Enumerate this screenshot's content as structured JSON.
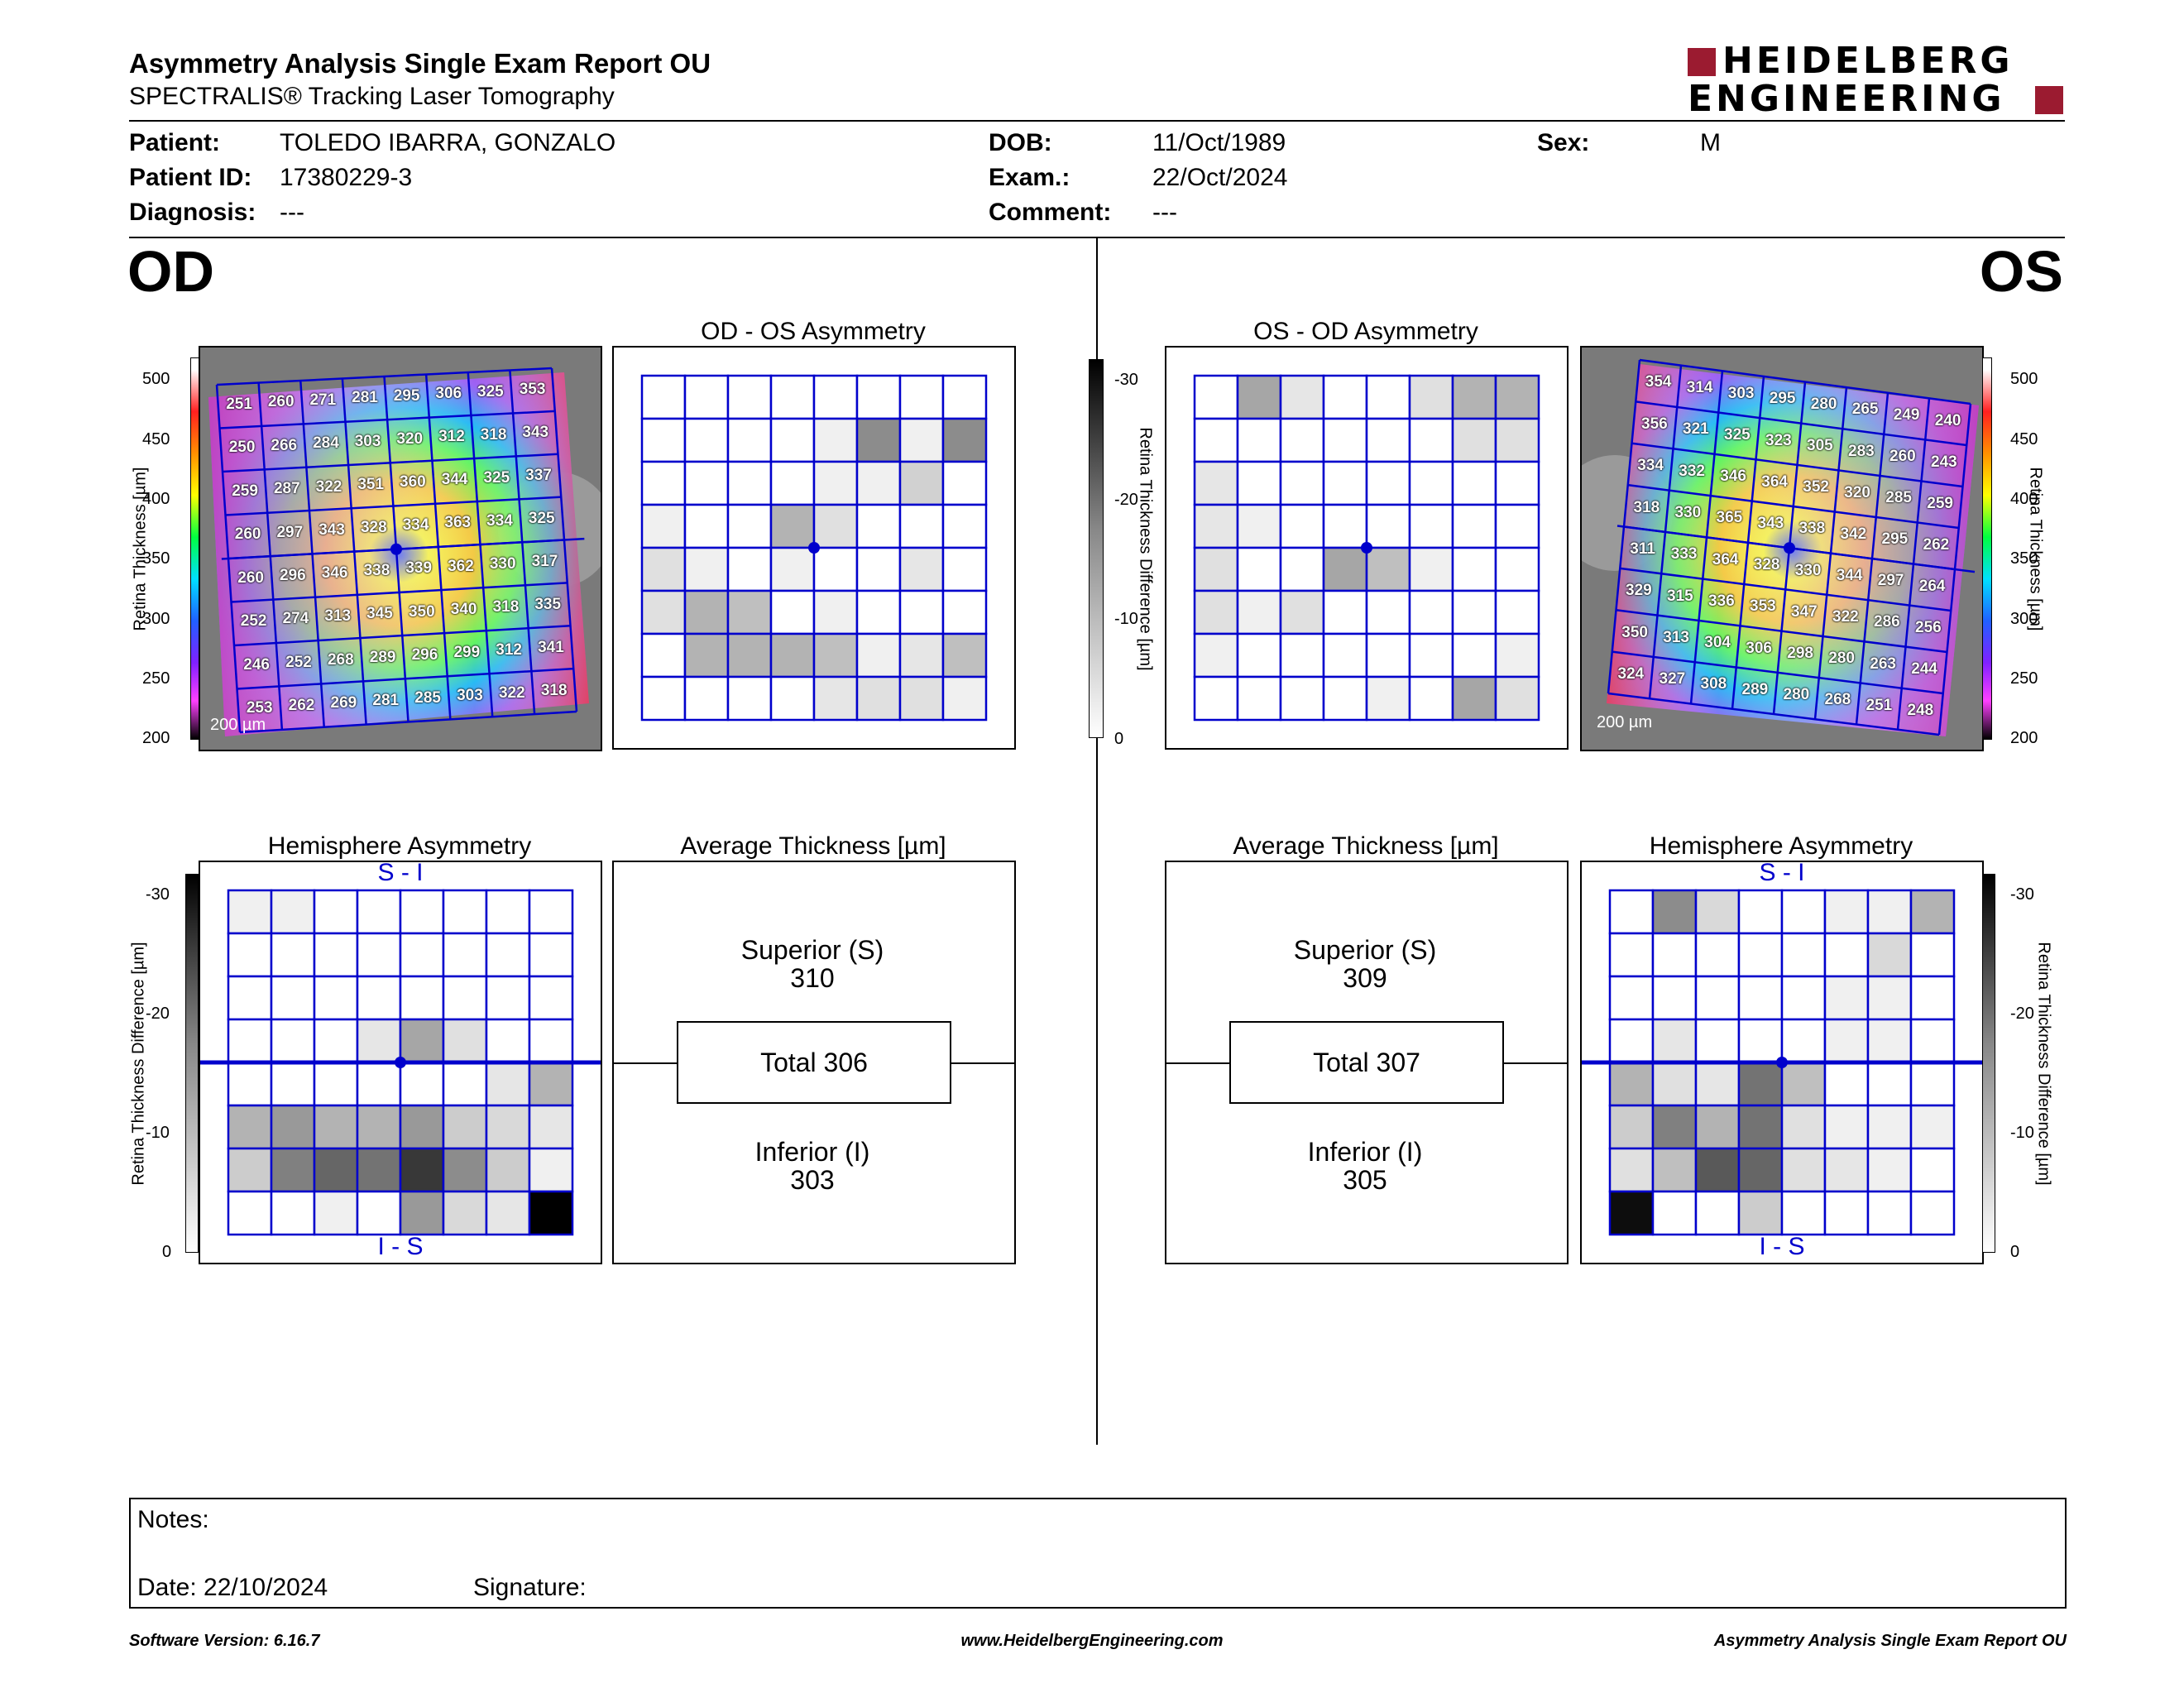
{
  "header": {
    "title": "Asymmetry Analysis Single Exam Report OU",
    "subtitle": "SPECTRALIS® Tracking Laser Tomography",
    "logo_line1": "HEIDELBERG",
    "logo_line2": "ENGINEERING",
    "brand_color": "#9b1b30"
  },
  "patient": {
    "patient_label": "Patient:",
    "patient_value": "TOLEDO IBARRA, GONZALO",
    "id_label": "Patient ID:",
    "id_value": "17380229-3",
    "diag_label": "Diagnosis:",
    "diag_value": "---",
    "dob_label": "DOB:",
    "dob_value": "11/Oct/1989",
    "exam_label": "Exam.:",
    "exam_value": "22/Oct/2024",
    "comment_label": "Comment:",
    "comment_value": "---",
    "sex_label": "Sex:",
    "sex_value": "M"
  },
  "od": {
    "eye": "OD",
    "asym_title": "OD - OS Asymmetry",
    "hemi_title": "Hemisphere Asymmetry",
    "avg_title": "Average Thickness [µm]",
    "superior_label": "Superior (S)",
    "superior_value": "310",
    "total_label": "Total 306",
    "inferior_label": "Inferior (I)",
    "inferior_value": "303",
    "scale_label": "200 µm",
    "si_label": "S - I",
    "is_label": "I - S",
    "grid_values": [
      [
        251,
        260,
        271,
        281,
        295,
        306,
        325,
        353
      ],
      [
        250,
        266,
        284,
        303,
        320,
        312,
        318,
        343
      ],
      [
        259,
        287,
        322,
        351,
        360,
        344,
        325,
        337
      ],
      [
        260,
        297,
        343,
        328,
        334,
        363,
        334,
        325
      ],
      [
        260,
        296,
        346,
        338,
        339,
        362,
        330,
        317
      ],
      [
        252,
        274,
        313,
        345,
        350,
        340,
        318,
        335
      ],
      [
        246,
        252,
        268,
        289,
        296,
        299,
        312,
        341
      ],
      [
        253,
        262,
        269,
        281,
        285,
        303,
        322,
        318
      ]
    ],
    "asym_levels": [
      [
        0,
        0,
        0,
        0,
        0,
        0,
        0,
        0
      ],
      [
        0,
        0,
        0,
        0,
        0.06,
        0.45,
        0.06,
        0.45
      ],
      [
        0,
        0,
        0,
        0,
        0.06,
        0.06,
        0.18,
        0
      ],
      [
        0.06,
        0,
        0,
        0.3,
        0.12,
        0,
        0,
        0
      ],
      [
        0.12,
        0.06,
        0,
        0.06,
        0,
        0,
        0.1,
        0
      ],
      [
        0.12,
        0.3,
        0.25,
        0,
        0.06,
        0,
        0,
        0
      ],
      [
        0,
        0.3,
        0.3,
        0.3,
        0.25,
        0.06,
        0.1,
        0.25
      ],
      [
        0,
        0,
        0,
        0,
        0.1,
        0.12,
        0.12,
        0.06
      ]
    ],
    "hemi_levels": [
      [
        0.06,
        0.06,
        0,
        0,
        0,
        0,
        0,
        0
      ],
      [
        0,
        0,
        0,
        0,
        0,
        0,
        0,
        0
      ],
      [
        0,
        0,
        0,
        0,
        0,
        0,
        0,
        0
      ],
      [
        0,
        0,
        0,
        0.1,
        0.35,
        0.12,
        0,
        0
      ],
      [
        0,
        0,
        0,
        0,
        0,
        0,
        0.1,
        0.3
      ],
      [
        0.3,
        0.4,
        0.3,
        0.3,
        0.4,
        0.2,
        0.15,
        0.1
      ],
      [
        0.2,
        0.5,
        0.6,
        0.55,
        0.78,
        0.45,
        0.2,
        0.06
      ],
      [
        0,
        0,
        0.06,
        0,
        0.4,
        0.15,
        0.1,
        1.0
      ]
    ]
  },
  "os": {
    "eye": "OS",
    "asym_title": "OS - OD Asymmetry",
    "hemi_title": "Hemisphere Asymmetry",
    "avg_title": "Average Thickness [µm]",
    "superior_label": "Superior (S)",
    "superior_value": "309",
    "total_label": "Total 307",
    "inferior_label": "Inferior (I)",
    "inferior_value": "305",
    "scale_label": "200 µm",
    "si_label": "S - I",
    "is_label": "I - S",
    "grid_values": [
      [
        354,
        314,
        303,
        295,
        280,
        265,
        249,
        240
      ],
      [
        356,
        321,
        325,
        323,
        305,
        283,
        260,
        243
      ],
      [
        334,
        332,
        346,
        364,
        352,
        320,
        285,
        259
      ],
      [
        318,
        330,
        365,
        343,
        338,
        342,
        295,
        262
      ],
      [
        311,
        333,
        364,
        328,
        330,
        344,
        297,
        264
      ],
      [
        329,
        315,
        336,
        353,
        347,
        322,
        286,
        256
      ],
      [
        350,
        313,
        304,
        306,
        298,
        280,
        263,
        244
      ],
      [
        324,
        327,
        308,
        289,
        280,
        268,
        251,
        248
      ]
    ],
    "asym_levels": [
      [
        0,
        0.35,
        0.1,
        0,
        0,
        0.12,
        0.3,
        0.3
      ],
      [
        0,
        0,
        0,
        0,
        0,
        0,
        0.12,
        0.12
      ],
      [
        0.1,
        0,
        0,
        0,
        0,
        0,
        0,
        0
      ],
      [
        0.1,
        0.06,
        0,
        0,
        0,
        0,
        0,
        0
      ],
      [
        0.12,
        0,
        0,
        0.35,
        0.25,
        0.06,
        0,
        0
      ],
      [
        0.12,
        0.06,
        0.12,
        0,
        0,
        0,
        0,
        0
      ],
      [
        0.06,
        0,
        0,
        0,
        0,
        0,
        0,
        0.06
      ],
      [
        0,
        0,
        0,
        0,
        0.06,
        0,
        0.35,
        0.12
      ]
    ],
    "hemi_levels": [
      [
        0,
        0.45,
        0.15,
        0,
        0,
        0.06,
        0.06,
        0.3
      ],
      [
        0,
        0,
        0,
        0,
        0,
        0,
        0.15,
        0
      ],
      [
        0,
        0,
        0,
        0,
        0,
        0.06,
        0.06,
        0
      ],
      [
        0,
        0.1,
        0,
        0,
        0,
        0.06,
        0.06,
        0
      ],
      [
        0.3,
        0.12,
        0.1,
        0.55,
        0.25,
        0,
        0,
        0
      ],
      [
        0.2,
        0.5,
        0.3,
        0.55,
        0.12,
        0.06,
        0.06,
        0.06
      ],
      [
        0.12,
        0.25,
        0.65,
        0.6,
        0.12,
        0.1,
        0.06,
        0
      ],
      [
        0.95,
        0,
        0,
        0.2,
        0,
        0,
        0,
        0
      ]
    ]
  },
  "colorbar": {
    "thickness_ticks": [
      "500",
      "450",
      "400",
      "350",
      "300",
      "250",
      "200"
    ],
    "thickness_label": "Retina Thickness [µm]",
    "diff_ticks": [
      "-30",
      "-20",
      "-10",
      "0"
    ],
    "diff_label": "Retina Thickness Difference [µm]",
    "grid_color": "#0000cc"
  },
  "notes": {
    "notes_label": "Notes:",
    "date_label": "Date: 22/10/2024",
    "signature_label": "Signature:"
  },
  "footer": {
    "software": "Software Version: 6.16.7",
    "url": "www.HeidelbergEngineering.com",
    "report": "Asymmetry Analysis Single Exam Report OU"
  }
}
